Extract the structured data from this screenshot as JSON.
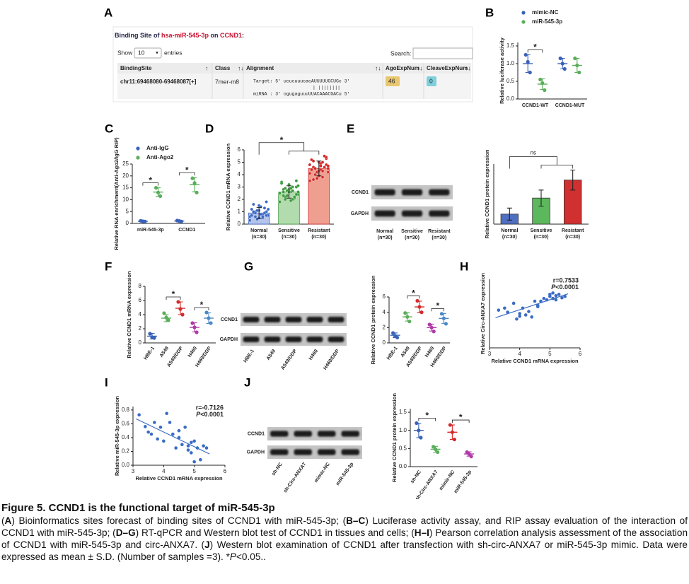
{
  "panel_a": {
    "label": "A",
    "title": [
      "Binding Site of ",
      "hsa-miR-545-3p",
      " on ",
      "CCND1",
      ":"
    ],
    "show": "Show",
    "page_size": "10",
    "entries": "entries",
    "search": "Search:",
    "headers": [
      "BindingSite",
      "Class",
      "Alignment",
      "AgoExpNum",
      "CleaveExpNum"
    ],
    "row": {
      "site": "chr11:69468080-69468087[+]",
      "class": "7mer-m8",
      "target": "Target: 5' ucucuuucacAUUUUUGCUGc 3'",
      "pairs": "| ||||||||",
      "mirna": "miRNA : 3' ogugaguuuUUACAAACGACu 5'",
      "ago": 46,
      "cleave": 0
    }
  },
  "chart_data": [
    {
      "label": "B",
      "type": "dot",
      "ylabel": "Relative luciferase activity",
      "categories": [
        "CCND1-WT",
        "CCND1-MUT"
      ],
      "ylim": [
        0,
        1.6
      ],
      "yticks": [
        {
          "value": 0,
          "label": "0.0"
        },
        0.5,
        {
          "value": 1,
          "label": "1.0"
        },
        1.5
      ],
      "legend": "top",
      "series": [
        {
          "name": "mimic-NC",
          "color": "#3a62b8",
          "points": [
            [
              1.25,
              1.05,
              0.75
            ],
            [
              1.15,
              1.0,
              0.85
            ]
          ],
          "mean": [
            1.0,
            1.0
          ],
          "sd": [
            0.25,
            0.15
          ]
        },
        {
          "name": "miR-545-3p",
          "color": "#5aae5a",
          "points": [
            [
              0.55,
              0.45,
              0.25
            ],
            [
              1.15,
              0.95,
              0.75
            ]
          ],
          "mean": [
            0.42,
            0.95
          ],
          "sd": [
            0.15,
            0.2
          ]
        }
      ],
      "significance": [
        {
          "text": "*",
          "a": [
            [
              0,
              0
            ]
          ],
          "b": [
            [
              0,
              1
            ]
          ]
        }
      ]
    },
    {
      "label": "C",
      "type": "dot",
      "ylabel": "Relative RNA enrichment(Anti-Ago2/IgG RIP)",
      "categories": [
        "miR-545-3p",
        "CCND1"
      ],
      "ylim": [
        0,
        25
      ],
      "yticks": [
        0,
        5,
        10,
        15,
        20,
        25
      ],
      "legend": "top-left",
      "series": [
        {
          "name": "Anti-IgG",
          "color": "#3a62b8",
          "points": [
            [
              1.1,
              0.9,
              0.8
            ],
            [
              1.2,
              1.0,
              0.8
            ]
          ],
          "mean": [
            0.9,
            1.0
          ],
          "sd": [
            0.15,
            0.2
          ]
        },
        {
          "name": "Anti-Ago2",
          "color": "#5aae5a",
          "points": [
            [
              15,
              13,
              11.5
            ],
            [
              19,
              17,
              13
            ]
          ],
          "mean": [
            13.2,
            16.3
          ],
          "sd": [
            1.8,
            3
          ]
        }
      ],
      "significance": [
        {
          "text": "*",
          "a": [
            [
              0,
              0
            ]
          ],
          "b": [
            [
              0,
              1
            ]
          ]
        },
        {
          "text": "*",
          "a": [
            [
              1,
              0
            ]
          ],
          "b": [
            [
              1,
              1
            ]
          ]
        }
      ]
    },
    {
      "label": "D",
      "type": "bar_dot",
      "ylabel": "Relative CCND1 mRNA expression",
      "categories": [
        "Normal",
        "Sensitive",
        "Resistant"
      ],
      "n_labels": [
        "(n=30)",
        "(n=30)",
        "(n=30)"
      ],
      "ylim": [
        0,
        6
      ],
      "yticks": [
        0,
        1,
        2,
        3,
        4,
        5,
        6
      ],
      "series": [
        {
          "colors": [
            "#3b68c6",
            "#3c9a3c",
            "#d42a2a"
          ],
          "fills": [
            "#b4c4ea",
            "#b2dcae",
            "#ee9f90"
          ],
          "points": [
            [
              0.3,
              0.5,
              0.6,
              0.7,
              0.8,
              0.9,
              1.0,
              1.1,
              1.2,
              1.3,
              0.4,
              0.6,
              0.8,
              1.0,
              1.2,
              1.4,
              1.6,
              1.8,
              0.5,
              0.7,
              0.9,
              1.1,
              0.3,
              0.6,
              0.9,
              1.2,
              0.8,
              1.0,
              0.7,
              1.5
            ],
            [
              1.8,
              2.0,
              2.2,
              2.4,
              2.6,
              2.8,
              3.0,
              3.2,
              3.4,
              2.1,
              2.3,
              2.5,
              2.7,
              2.9,
              3.1,
              1.9,
              2.6,
              2.4,
              2.8,
              3.3,
              2.2,
              2.7,
              2.5,
              3.0,
              2.0,
              2.6,
              2.9,
              2.3,
              3.5,
              2.6
            ],
            [
              3.5,
              3.8,
              4.0,
              4.2,
              4.4,
              4.6,
              4.8,
              5.0,
              5.2,
              5.5,
              3.7,
              4.1,
              4.3,
              4.5,
              4.7,
              4.9,
              5.1,
              5.3,
              3.9,
              4.4,
              4.6,
              4.2,
              4.8,
              5.0,
              4.0,
              4.5,
              4.7,
              3.6,
              5.4,
              4.3
            ]
          ],
          "mean": [
            0.9,
            2.6,
            4.5
          ],
          "sd": [
            0.45,
            0.5,
            0.6
          ]
        }
      ],
      "significance": [
        {
          "text": "*",
          "a": [
            [
              0,
              0
            ]
          ],
          "b": [
            [
              1,
              0
            ],
            [
              2,
              0
            ]
          ]
        }
      ]
    },
    {
      "label": "E",
      "type": "bar",
      "ylabel": "Relative CCND1 protein expression",
      "categories": [
        "Normal",
        "Sensitive",
        "Resistant"
      ],
      "n_labels": [
        "(n=30)",
        "(n=30)",
        "(n=30)"
      ],
      "ylim": [
        0,
        6
      ],
      "series": [
        {
          "colors": [
            "#4f6fc0",
            "#5cb85c",
            "#d03030"
          ],
          "mean": [
            1.0,
            2.6,
            4.4
          ],
          "sd": [
            0.6,
            0.8,
            1.0
          ]
        }
      ],
      "significance": [
        {
          "text": "ns",
          "a": [
            [
              0,
              0
            ]
          ],
          "b": [
            [
              1,
              0
            ],
            [
              2,
              0
            ]
          ]
        }
      ]
    },
    {
      "label": "F",
      "type": "dot",
      "ylabel": "Relative CCND1 mRNA expression",
      "categories": [
        "HBE-1",
        "A549",
        "A549/DDP",
        "H460",
        "H460/DDP"
      ],
      "rotate_labels": true,
      "ylim": [
        0,
        8
      ],
      "yticks": [
        0,
        2,
        4,
        6,
        8
      ],
      "series": [
        {
          "colors": [
            "#3a62b8",
            "#5aae5a",
            "#d42a2a",
            "#b03aa8",
            "#4a88c8"
          ],
          "points": [
            [
              1.3,
              0.8,
              0.7
            ],
            [
              4.2,
              3.6,
              3.2
            ],
            [
              5.8,
              4.8,
              4.0
            ],
            [
              2.8,
              2.2,
              1.5
            ],
            [
              4.3,
              3.5,
              2.8
            ]
          ],
          "mean": [
            0.95,
            3.5,
            4.9,
            2.2,
            3.5
          ],
          "sd": [
            0.4,
            0.5,
            0.9,
            0.65,
            0.75
          ]
        }
      ],
      "significance": [
        {
          "text": "*",
          "a": [
            [
              1,
              0
            ]
          ],
          "b": [
            [
              2,
              0
            ]
          ]
        },
        {
          "text": "*",
          "a": [
            [
              3,
              0
            ]
          ],
          "b": [
            [
              4,
              0
            ]
          ]
        }
      ]
    },
    {
      "label": "G",
      "type": "dot",
      "ylabel": "Relative CCND1 protein expression",
      "categories": [
        "HBE-1",
        "A549",
        "A549/DDP",
        "H460",
        "H460/DDP"
      ],
      "rotate_labels": true,
      "ylim": [
        0,
        6
      ],
      "yticks": [
        0,
        2,
        4,
        6
      ],
      "series": [
        {
          "colors": [
            "#3a62b8",
            "#5aae5a",
            "#d42a2a",
            "#b03aa8",
            "#4a88c8"
          ],
          "points": [
            [
              1.3,
              0.9,
              0.7
            ],
            [
              3.9,
              3.4,
              2.8
            ],
            [
              5.5,
              4.7,
              4.0
            ],
            [
              2.4,
              2.0,
              1.5
            ],
            [
              3.8,
              3.2,
              2.5
            ]
          ],
          "mean": [
            1.0,
            3.4,
            4.7,
            2.0,
            3.2
          ],
          "sd": [
            0.3,
            0.55,
            0.75,
            0.45,
            0.65
          ]
        }
      ],
      "significance": [
        {
          "text": "*",
          "a": [
            [
              1,
              0
            ]
          ],
          "b": [
            [
              2,
              0
            ]
          ]
        },
        {
          "text": "*",
          "a": [
            [
              3,
              0
            ]
          ],
          "b": [
            [
              4,
              0
            ]
          ]
        }
      ]
    },
    {
      "label": "H",
      "type": "scatter",
      "ylabel": "Relative Circ-ANXA7 expression",
      "xlabel": "Relative CCND1 mRNA expression",
      "xlim": [
        3,
        6
      ],
      "xticks": [
        3,
        4,
        5,
        6
      ],
      "ylim": [
        0,
        10
      ],
      "color": "#3a6cc4",
      "fit": true,
      "r": "r=0.7533",
      "p": [
        "P",
        "<0.0001"
      ],
      "x": [
        3.3,
        3.5,
        3.6,
        3.8,
        3.9,
        4.0,
        4.1,
        4.2,
        4.3,
        4.4,
        4.5,
        4.6,
        4.7,
        4.8,
        4.9,
        5.0,
        5.0,
        5.1,
        5.1,
        5.2,
        5.2,
        5.3,
        5.4,
        5.5,
        4.0,
        4.6
      ],
      "y": [
        5.5,
        5.8,
        5.2,
        6.5,
        4.2,
        5.0,
        5.8,
        4.8,
        5.3,
        4.5,
        6.8,
        6.0,
        6.8,
        7.2,
        7.0,
        7.5,
        7.8,
        8.0,
        7.2,
        7.6,
        7.0,
        7.8,
        7.3,
        7.5,
        4.6,
        6.2
      ]
    },
    {
      "label": "I",
      "type": "scatter",
      "ylabel": "Relative miR-545-3p expression",
      "xlabel": "Relative CCND1 mRNA expression",
      "xlim": [
        3,
        6
      ],
      "xticks": [
        3,
        4,
        5,
        6
      ],
      "ylim": [
        0,
        0.85
      ],
      "yticks": [
        {
          "value": 0,
          "label": "0.0"
        },
        0.2,
        0.4,
        0.6,
        0.8
      ],
      "color": "#3a6cc4",
      "fit": true,
      "r": "r=-0.7126",
      "p": [
        "P",
        "<0.0001"
      ],
      "x": [
        3.2,
        3.4,
        3.5,
        3.6,
        3.7,
        3.8,
        3.9,
        4.0,
        4.1,
        4.2,
        4.3,
        4.4,
        4.5,
        4.6,
        4.7,
        4.8,
        4.9,
        5.0,
        5.0,
        5.1,
        5.2,
        5.3,
        5.4,
        4.5,
        4.8,
        4.9
      ],
      "y": [
        0.73,
        0.56,
        0.48,
        0.45,
        0.62,
        0.38,
        0.55,
        0.35,
        0.75,
        0.62,
        0.45,
        0.25,
        0.4,
        0.3,
        0.55,
        0.22,
        0.18,
        0.35,
        0.05,
        0.25,
        0.08,
        0.28,
        0.25,
        0.5,
        0.28,
        0.33
      ]
    },
    {
      "label": "J",
      "type": "dot",
      "ylabel": "Relative CCND1 protein expression",
      "categories": [
        "sh-NC",
        "sh-Circ-ANXA7",
        "mimic-NC",
        "miR-545-3p"
      ],
      "rotate_labels": true,
      "ylim": [
        0,
        1.6
      ],
      "yticks": [
        {
          "value": 0,
          "label": "0.0"
        },
        0.5,
        {
          "value": 1,
          "label": "1.0"
        },
        1.5
      ],
      "series": [
        {
          "colors": [
            "#3a62b8",
            "#5aae5a",
            "#d42a2a",
            "#b03aa8"
          ],
          "points": [
            [
              1.2,
              1.0,
              0.8
            ],
            [
              0.55,
              0.48,
              0.4
            ],
            [
              1.15,
              0.95,
              0.75
            ],
            [
              0.4,
              0.35,
              0.28
            ]
          ],
          "mean": [
            1.0,
            0.48,
            0.95,
            0.35
          ],
          "sd": [
            0.2,
            0.08,
            0.2,
            0.06
          ]
        }
      ],
      "significance": [
        {
          "text": "*",
          "a": [
            [
              0,
              0
            ]
          ],
          "b": [
            [
              1,
              0
            ]
          ]
        },
        {
          "text": "*",
          "a": [
            [
              2,
              0
            ]
          ],
          "b": [
            [
              3,
              0
            ]
          ]
        }
      ]
    }
  ],
  "blots": [
    {
      "rows": [
        "CCND1",
        "GAPDH"
      ],
      "lanes": [
        "Normal",
        "Sensitive",
        "Resistant"
      ],
      "n_labels": [
        "(n=30)",
        "(n=30)",
        "(n=30)"
      ]
    },
    {
      "rows": [
        "CCND1",
        "GAPDH"
      ],
      "lanes": [
        "HBE-1",
        "A549",
        "A549/DDP",
        "H460",
        "H460/DDP"
      ],
      "rotate_labels": true
    },
    {
      "rows": [
        "CCND1",
        "GAPDH"
      ],
      "lanes": [
        "sh-NC",
        "sh-Circ-ANXA7",
        "mimic-NC",
        "miR-545-3p"
      ],
      "rotate_labels": true
    }
  ],
  "caption": {
    "title": "Figure 5. CCND1 is the functional target of miR-545-3p",
    "body": [
      "(",
      "A",
      ") Bioinformatics sites forecast of binding sites of CCND1 with miR-545-3p; (",
      "B–C",
      ") Luciferase activity assay, and RIP assay evaluation of the interaction of CCND1 with miR-545-3p; (",
      "D–G",
      ") RT-qPCR and Western blot test of CCND1 in tissues and cells; (",
      "H–I",
      ") Pearson correlation analysis assessment of the association of CCND1 with miR-545-3p and circ-ANXA7. (",
      "J",
      ") Western blot examination of CCND1 after transfection with sh-circ-ANXA7 or miR-545-3p mimic. Data were expressed as mean ± S.D. (Number of samples =3). *",
      "P",
      "<0.05.."
    ]
  }
}
